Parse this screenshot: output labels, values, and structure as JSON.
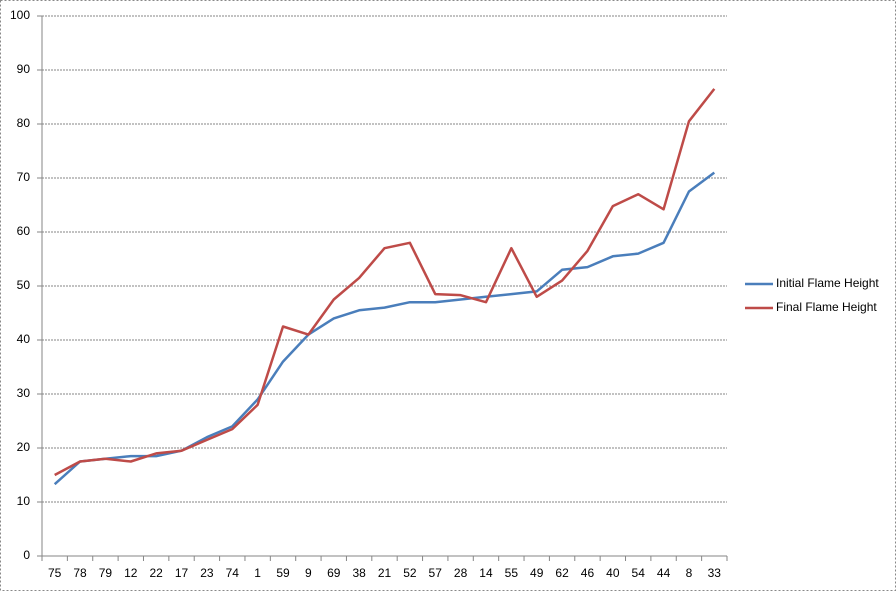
{
  "chart_data": {
    "type": "line",
    "categories": [
      "75",
      "78",
      "79",
      "12",
      "22",
      "17",
      "23",
      "74",
      "1",
      "59",
      "9",
      "69",
      "38",
      "21",
      "52",
      "57",
      "28",
      "14",
      "55",
      "49",
      "62",
      "46",
      "40",
      "54",
      "44",
      "8",
      "33"
    ],
    "series": [
      {
        "name": "Initial Flame Height",
        "color": "#4a7ebb",
        "values": [
          13.3,
          17.5,
          18,
          18.5,
          18.5,
          19.5,
          22,
          24,
          29,
          36,
          41,
          44,
          45.5,
          46,
          47,
          47,
          47.5,
          48,
          48.5,
          49,
          53,
          53.5,
          55.5,
          56,
          58,
          67.5,
          71
        ]
      },
      {
        "name": "Final Flame Height",
        "color": "#be4b48",
        "values": [
          15,
          17.5,
          18,
          17.5,
          19,
          19.5,
          21.5,
          23.5,
          28,
          42.5,
          41,
          47.5,
          51.5,
          57,
          58,
          48.5,
          48.3,
          47,
          57,
          48,
          51,
          56.5,
          64.8,
          67,
          64.2,
          80.5,
          86.5
        ]
      }
    ],
    "ylim": [
      0,
      100
    ],
    "yticks": [
      0,
      10,
      20,
      30,
      40,
      50,
      60,
      70,
      80,
      90,
      100
    ],
    "grid": true,
    "legend": "right"
  }
}
